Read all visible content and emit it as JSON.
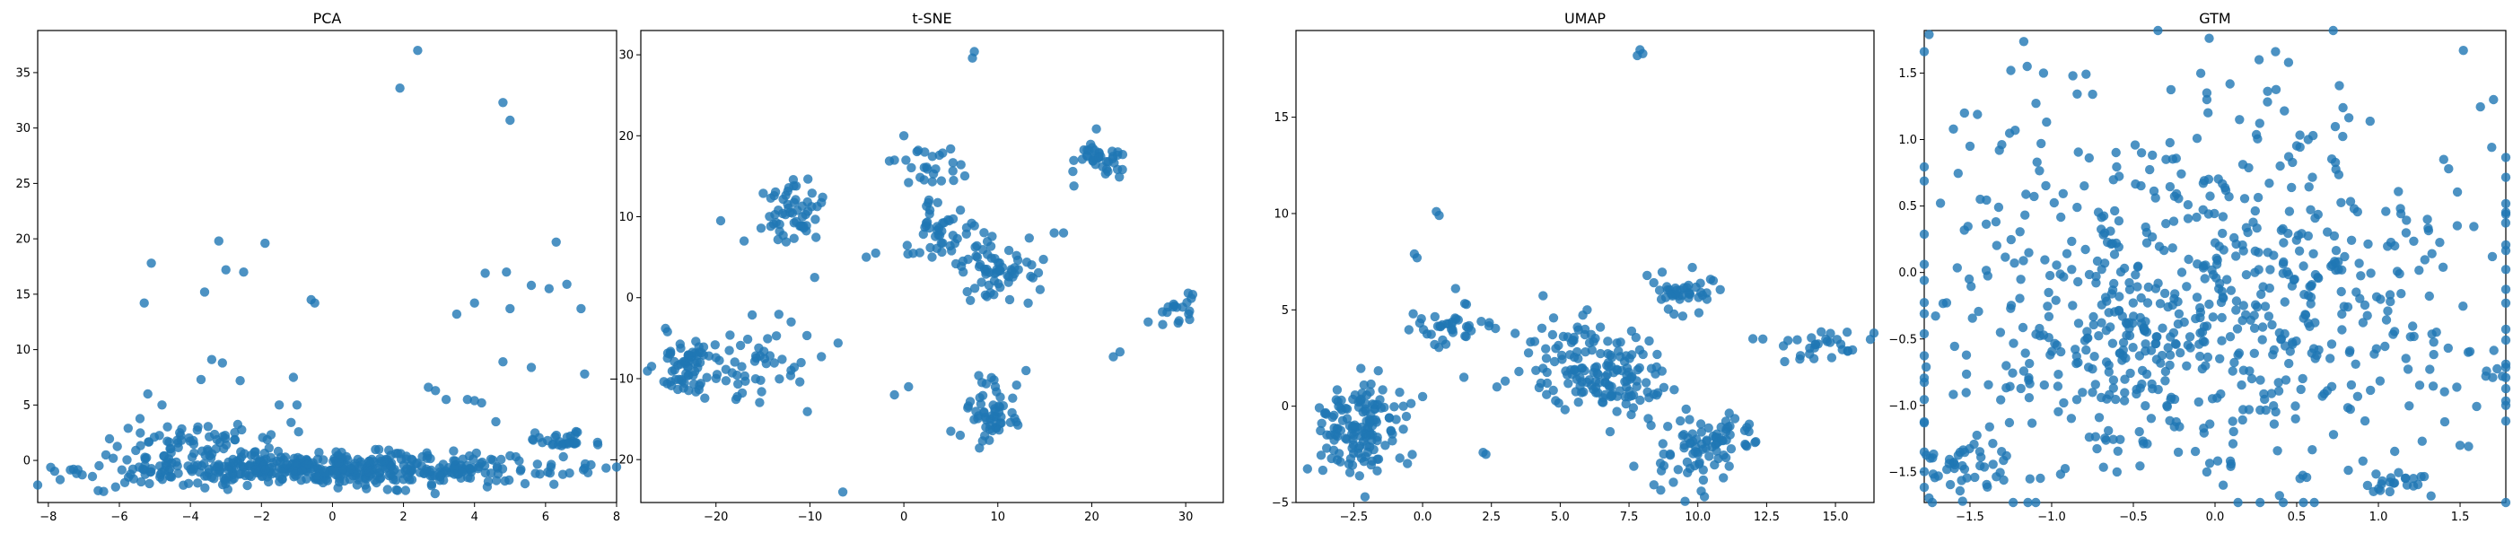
{
  "figure": {
    "background": "#ffffff",
    "point_color": "#1f77b4"
  },
  "chart_data": [
    {
      "type": "scatter",
      "title": "PCA",
      "xlabel": "",
      "ylabel": "",
      "xlim": [
        -8.3,
        8.0
      ],
      "ylim": [
        -3.8,
        38.8
      ],
      "xticks": [
        -8,
        -6,
        -4,
        -2,
        0,
        2,
        4,
        6,
        8
      ],
      "yticks": [
        0,
        5,
        10,
        15,
        20,
        25,
        30,
        35
      ],
      "grid": false,
      "clusters": [
        {
          "cx": 0.0,
          "cy": -0.8,
          "sx": 3.3,
          "sy": 0.7,
          "n": 480
        },
        {
          "cx": -4.0,
          "cy": 1.6,
          "sx": 1.3,
          "sy": 1.1,
          "n": 70
        },
        {
          "cx": 6.4,
          "cy": 1.8,
          "sx": 0.5,
          "sy": 0.4,
          "n": 30
        }
      ],
      "points": [
        [
          2.4,
          37.0
        ],
        [
          1.9,
          33.6
        ],
        [
          4.8,
          32.3
        ],
        [
          5.0,
          30.7
        ],
        [
          -3.2,
          19.8
        ],
        [
          -1.9,
          19.6
        ],
        [
          6.3,
          19.7
        ],
        [
          -5.1,
          17.8
        ],
        [
          -3.0,
          17.2
        ],
        [
          -2.5,
          17.0
        ],
        [
          4.3,
          16.9
        ],
        [
          4.9,
          17.0
        ],
        [
          5.6,
          15.8
        ],
        [
          6.6,
          15.9
        ],
        [
          6.1,
          15.5
        ],
        [
          -3.6,
          15.2
        ],
        [
          -5.3,
          14.2
        ],
        [
          -0.6,
          14.5
        ],
        [
          -0.5,
          14.2
        ],
        [
          5.0,
          13.7
        ],
        [
          7.0,
          13.7
        ],
        [
          3.5,
          13.2
        ],
        [
          4.0,
          14.2
        ],
        [
          -3.4,
          9.1
        ],
        [
          -3.1,
          8.8
        ],
        [
          4.8,
          8.9
        ],
        [
          5.6,
          8.4
        ],
        [
          7.1,
          7.8
        ],
        [
          -1.1,
          7.5
        ],
        [
          -1.5,
          5.0
        ],
        [
          3.8,
          5.5
        ],
        [
          4.0,
          5.4
        ],
        [
          2.7,
          6.6
        ],
        [
          3.2,
          5.5
        ],
        [
          -1.0,
          5.0
        ],
        [
          4.2,
          5.2
        ],
        [
          -4.8,
          5.0
        ],
        [
          -5.2,
          6.0
        ],
        [
          2.9,
          6.3
        ],
        [
          -3.7,
          7.3
        ],
        [
          -2.6,
          7.2
        ],
        [
          4.6,
          3.5
        ]
      ]
    },
    {
      "type": "scatter",
      "title": "t-SNE",
      "xlabel": "",
      "ylabel": "",
      "xlim": [
        -28.0,
        34.0
      ],
      "ylim": [
        -25.3,
        33.0
      ],
      "xticks": [
        -20,
        -10,
        0,
        10,
        20,
        30
      ],
      "yticks": [
        -20,
        -10,
        0,
        10,
        20,
        30
      ],
      "grid": false,
      "clusters": [
        {
          "cx": -23.0,
          "cy": -8.5,
          "sx": 1.8,
          "sy": 2.2,
          "n": 70
        },
        {
          "cx": -15.0,
          "cy": -9.0,
          "sx": 2.6,
          "sy": 2.6,
          "n": 45
        },
        {
          "cx": -11.5,
          "cy": 10.5,
          "sx": 1.5,
          "sy": 2.0,
          "n": 55
        },
        {
          "cx": 4.5,
          "cy": 8.0,
          "sx": 1.8,
          "sy": 2.2,
          "n": 50
        },
        {
          "cx": 10.0,
          "cy": 3.5,
          "sx": 2.0,
          "sy": 2.0,
          "n": 60
        },
        {
          "cx": 9.5,
          "cy": -14.5,
          "sx": 1.2,
          "sy": 2.2,
          "n": 55
        },
        {
          "cx": 20.5,
          "cy": 17.0,
          "sx": 1.5,
          "sy": 1.2,
          "n": 40
        },
        {
          "cx": 29.5,
          "cy": -2.0,
          "sx": 1.0,
          "sy": 1.2,
          "n": 18
        },
        {
          "cx": 2.0,
          "cy": 16.0,
          "sx": 2.2,
          "sy": 1.2,
          "n": 25
        }
      ],
      "points": [
        [
          7.5,
          30.4
        ],
        [
          7.3,
          29.6
        ],
        [
          -6.5,
          -24.0
        ],
        [
          22.3,
          -7.3
        ],
        [
          23.0,
          -6.7
        ],
        [
          -7.0,
          -5.6
        ],
        [
          12.0,
          -10.8
        ],
        [
          13.0,
          -9.0
        ],
        [
          -3.0,
          5.5
        ],
        [
          -4.0,
          5.0
        ],
        [
          -1.0,
          -12.0
        ],
        [
          0.5,
          -11.0
        ],
        [
          5.0,
          -16.5
        ],
        [
          6.0,
          -17.0
        ],
        [
          14.5,
          1.0
        ],
        [
          16.0,
          8.0
        ],
        [
          17.0,
          8.0
        ],
        [
          -19.5,
          9.5
        ],
        [
          -17.0,
          7.0
        ],
        [
          -9.5,
          2.5
        ],
        [
          -12.0,
          -3.0
        ],
        [
          0.0,
          20.0
        ],
        [
          -1.0,
          17.0
        ],
        [
          26.0,
          -3.0
        ]
      ]
    },
    {
      "type": "scatter",
      "title": "UMAP",
      "xlabel": "",
      "ylabel": "",
      "xlim": [
        -4.6,
        16.4
      ],
      "ylim": [
        -5.0,
        19.5
      ],
      "xticks": [
        -2.5,
        0.0,
        2.5,
        5.0,
        7.5,
        10.0,
        12.5,
        15.0
      ],
      "yticks": [
        -5,
        0,
        5,
        10,
        15
      ],
      "grid": false,
      "clusters": [
        {
          "cx": -2.4,
          "cy": -1.3,
          "sx": 0.7,
          "sy": 1.2,
          "n": 140
        },
        {
          "cx": 1.0,
          "cy": 4.0,
          "sx": 0.8,
          "sy": 0.7,
          "n": 40
        },
        {
          "cx": 5.5,
          "cy": 3.2,
          "sx": 1.1,
          "sy": 1.2,
          "n": 50
        },
        {
          "cx": 6.8,
          "cy": 1.2,
          "sx": 1.1,
          "sy": 1.1,
          "n": 110
        },
        {
          "cx": 9.3,
          "cy": 6.0,
          "sx": 0.7,
          "sy": 0.6,
          "n": 40
        },
        {
          "cx": 10.8,
          "cy": -1.7,
          "sx": 0.8,
          "sy": 0.6,
          "n": 55
        },
        {
          "cx": 14.2,
          "cy": 3.2,
          "sx": 1.0,
          "sy": 0.4,
          "n": 30
        },
        {
          "cx": 9.5,
          "cy": -2.5,
          "sx": 0.9,
          "sy": 1.2,
          "n": 35
        }
      ],
      "points": [
        [
          7.9,
          18.5
        ],
        [
          8.0,
          18.3
        ],
        [
          7.8,
          18.2
        ],
        [
          0.5,
          10.1
        ],
        [
          0.6,
          9.9
        ],
        [
          -0.3,
          7.9
        ],
        [
          -0.2,
          7.7
        ],
        [
          2.2,
          -2.4
        ],
        [
          2.3,
          -2.5
        ],
        [
          1.5,
          1.5
        ],
        [
          2.7,
          1.0
        ],
        [
          3.0,
          1.3
        ],
        [
          12.0,
          3.5
        ],
        [
          9.8,
          7.2
        ],
        [
          3.5,
          1.8
        ],
        [
          4.3,
          1.2
        ],
        [
          8.3,
          -1.0
        ],
        [
          0.0,
          0.5
        ],
        [
          -0.7,
          0.0
        ]
      ]
    },
    {
      "type": "scatter",
      "title": "GTM",
      "xlabel": "",
      "ylabel": "",
      "xlim": [
        -1.78,
        1.78
      ],
      "ylim": [
        -1.73,
        1.82
      ],
      "xticks": [
        -1.5,
        -1.0,
        -0.5,
        0.0,
        0.5,
        1.0,
        1.5
      ],
      "yticks": [
        -1.5,
        -1.0,
        -0.5,
        0.0,
        0.5,
        1.0,
        1.5
      ],
      "grid": false,
      "clusters": [
        {
          "cx": 0.0,
          "cy": -0.2,
          "sx": 0.95,
          "sy": 0.75,
          "n": 650
        },
        {
          "cx": -1.45,
          "cy": -1.5,
          "sx": 0.18,
          "sy": 0.12,
          "n": 45
        },
        {
          "cx": 1.15,
          "cy": -1.6,
          "sx": 0.12,
          "sy": 0.05,
          "n": 20
        },
        {
          "cx": -0.5,
          "cy": -0.55,
          "sx": 0.35,
          "sy": 0.25,
          "n": 90
        }
      ],
      "points": [
        [
          1.52,
          1.67
        ],
        [
          -1.15,
          1.55
        ],
        [
          -1.25,
          1.52
        ],
        [
          -1.05,
          1.5
        ],
        [
          -0.87,
          1.48
        ],
        [
          0.27,
          1.6
        ],
        [
          0.45,
          1.58
        ],
        [
          -0.05,
          1.35
        ],
        [
          -0.05,
          1.3
        ],
        [
          0.57,
          1.0
        ],
        [
          0.6,
          1.03
        ],
        [
          1.4,
          0.85
        ],
        [
          1.43,
          0.78
        ],
        [
          -1.5,
          0.95
        ],
        [
          -1.32,
          0.92
        ],
        [
          -0.45,
          0.9
        ],
        [
          -0.3,
          0.85
        ],
        [
          0.15,
          1.15
        ],
        [
          1.1,
          0.2
        ],
        [
          1.3,
          0.4
        ],
        [
          -0.05,
          -1.5
        ],
        [
          0.05,
          -1.6
        ],
        [
          0.52,
          -1.55
        ],
        [
          -0.6,
          -1.5
        ],
        [
          1.5,
          -1.3
        ],
        [
          1.55,
          -0.6
        ]
      ]
    }
  ]
}
